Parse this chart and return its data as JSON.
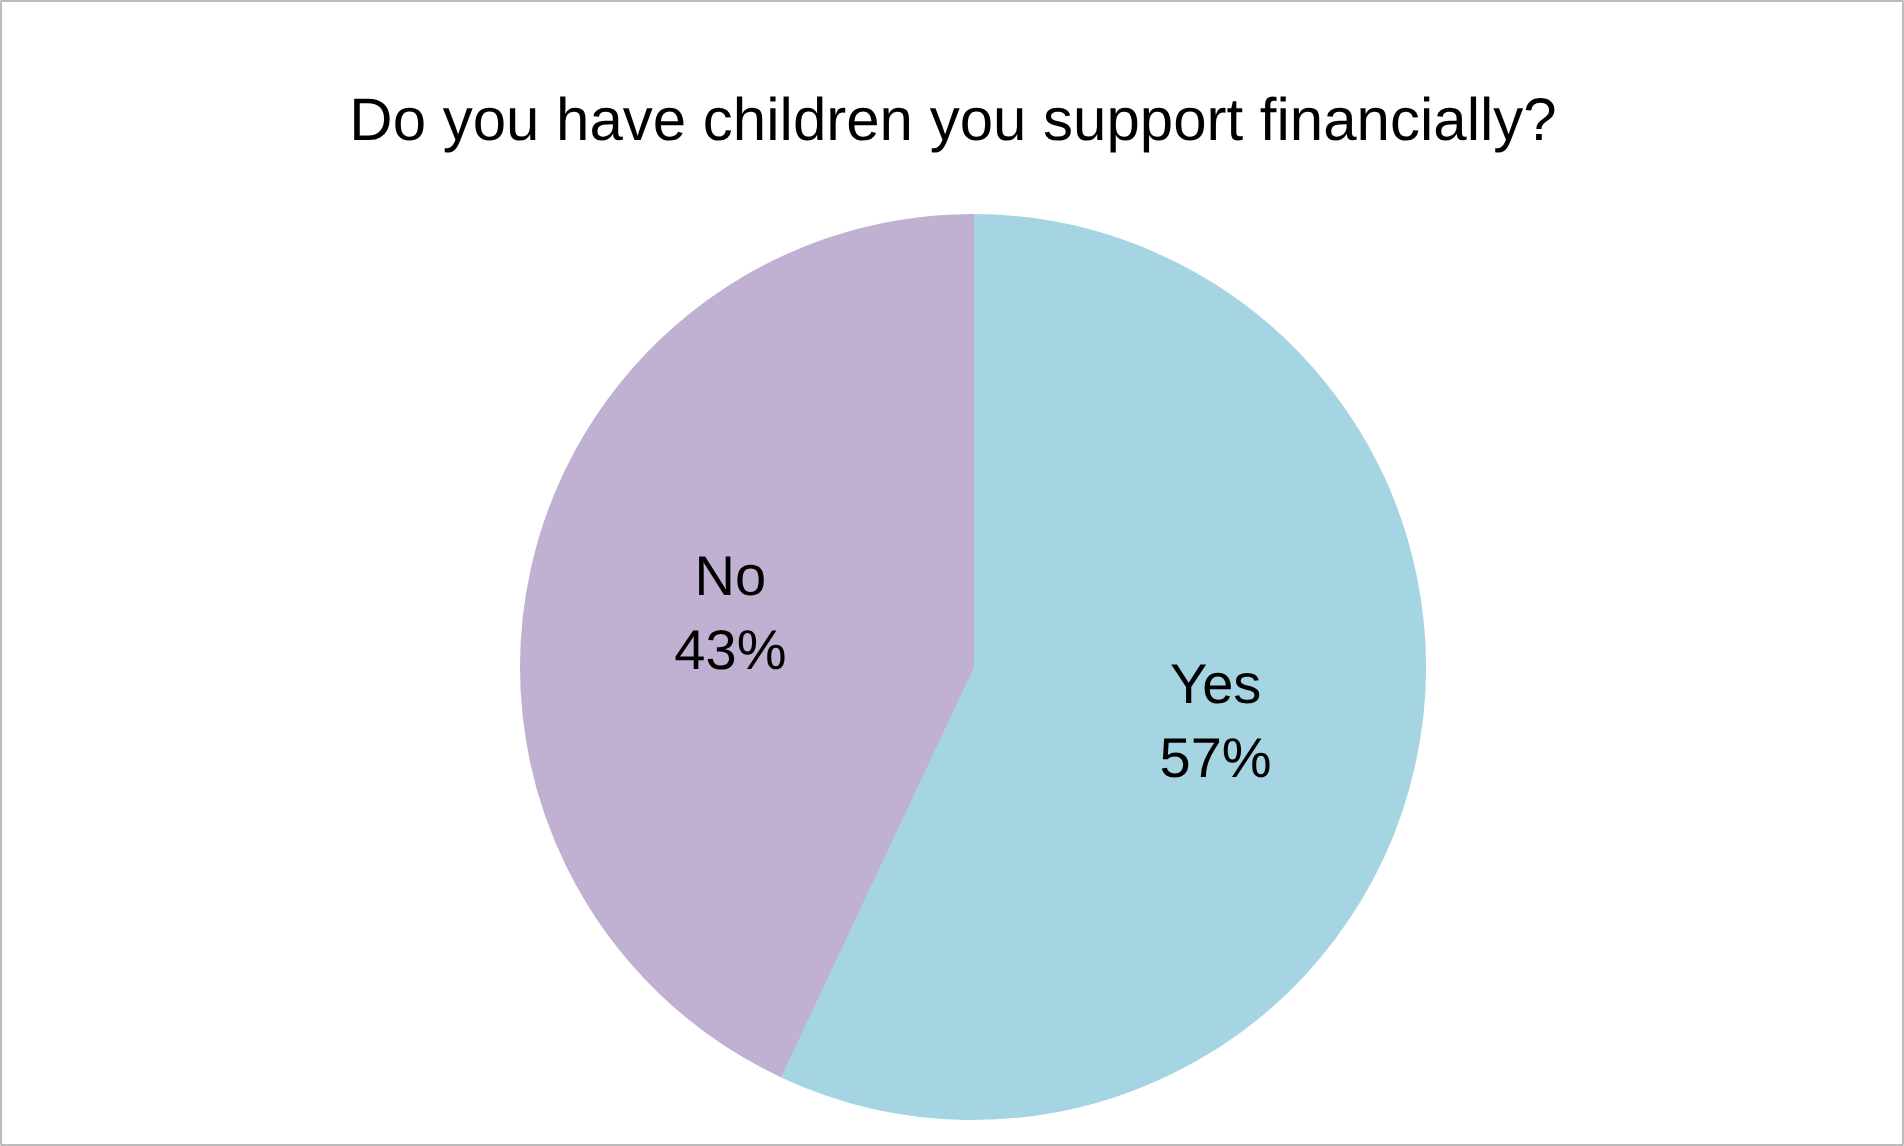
{
  "chart_data": {
    "type": "pie",
    "title": "Do you have children you support financially?",
    "categories": [
      "Yes",
      "No"
    ],
    "values": [
      57,
      43
    ],
    "colors": [
      "#a5d5e3",
      "#c0b0d1"
    ],
    "value_labels": [
      "57%",
      "43%"
    ]
  }
}
